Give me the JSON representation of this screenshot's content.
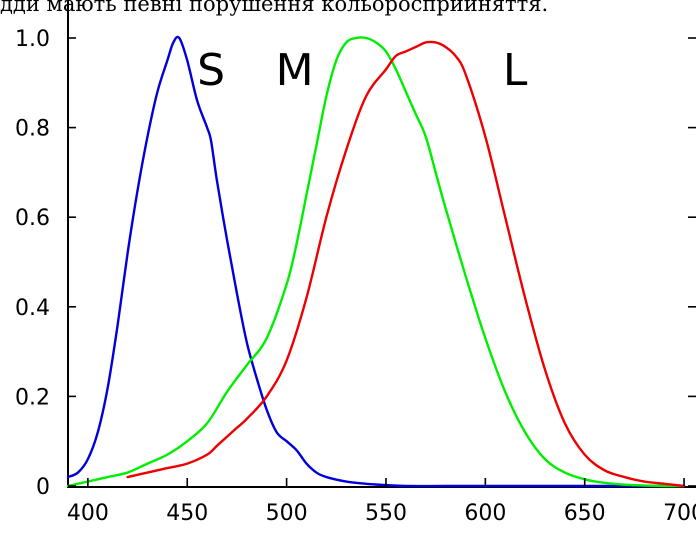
{
  "caption": "дди мають певні порушення кольоросприйняття.",
  "chart_data": {
    "type": "line",
    "xlim": [
      390,
      705
    ],
    "ylim": [
      0,
      1.0
    ],
    "x_ticks": [
      400,
      450,
      500,
      550,
      600,
      650,
      700
    ],
    "x_tick_labels": [
      "400",
      "450",
      "500",
      "550",
      "600",
      "650",
      "700"
    ],
    "y_ticks": [
      0,
      0.2,
      0.4,
      0.6,
      0.8,
      1.0
    ],
    "y_tick_labels": [
      "0",
      "0.2",
      "0.4",
      "0.6",
      "0.8",
      "1.0"
    ],
    "grid": false,
    "series": [
      {
        "name": "S",
        "color": "#0000dd",
        "x": [
          390,
          395,
          400,
          405,
          410,
          415,
          420,
          425,
          430,
          435,
          440,
          443,
          446,
          450,
          455,
          460,
          462,
          465,
          470,
          475,
          480,
          485,
          490,
          495,
          500,
          505,
          510,
          515,
          520,
          530,
          540,
          550,
          560,
          580,
          600,
          650,
          700
        ],
        "y": [
          0.02,
          0.03,
          0.06,
          0.12,
          0.22,
          0.36,
          0.52,
          0.66,
          0.78,
          0.88,
          0.95,
          0.99,
          1.0,
          0.95,
          0.86,
          0.8,
          0.77,
          0.68,
          0.55,
          0.43,
          0.32,
          0.24,
          0.17,
          0.12,
          0.1,
          0.08,
          0.05,
          0.03,
          0.02,
          0.01,
          0.005,
          0.002,
          0.0,
          0.0,
          0.0,
          0.0,
          0.0
        ]
      },
      {
        "name": "M",
        "color": "#00ee00",
        "x": [
          390,
          400,
          410,
          420,
          430,
          440,
          450,
          460,
          470,
          480,
          490,
          500,
          505,
          510,
          515,
          520,
          525,
          530,
          535,
          540,
          545,
          550,
          555,
          560,
          565,
          570,
          575,
          580,
          590,
          600,
          610,
          620,
          630,
          640,
          650,
          660,
          670,
          680,
          690,
          700
        ],
        "y": [
          0.0,
          0.01,
          0.02,
          0.03,
          0.05,
          0.07,
          0.1,
          0.14,
          0.21,
          0.27,
          0.33,
          0.45,
          0.54,
          0.65,
          0.76,
          0.87,
          0.95,
          0.99,
          1.0,
          1.0,
          0.99,
          0.97,
          0.93,
          0.88,
          0.83,
          0.78,
          0.7,
          0.62,
          0.47,
          0.33,
          0.21,
          0.12,
          0.06,
          0.03,
          0.015,
          0.007,
          0.003,
          0.001,
          0.0,
          0.0
        ]
      },
      {
        "name": "L",
        "color": "#ee0000",
        "x": [
          420,
          430,
          440,
          450,
          460,
          465,
          470,
          475,
          480,
          490,
          500,
          510,
          520,
          530,
          540,
          550,
          555,
          560,
          565,
          570,
          575,
          580,
          585,
          590,
          600,
          610,
          620,
          630,
          640,
          650,
          660,
          670,
          680,
          690,
          700
        ],
        "y": [
          0.02,
          0.03,
          0.04,
          0.05,
          0.07,
          0.09,
          0.11,
          0.13,
          0.15,
          0.2,
          0.28,
          0.42,
          0.6,
          0.75,
          0.87,
          0.93,
          0.96,
          0.97,
          0.98,
          0.99,
          0.99,
          0.98,
          0.96,
          0.92,
          0.78,
          0.6,
          0.42,
          0.26,
          0.14,
          0.07,
          0.035,
          0.02,
          0.01,
          0.005,
          0.0
        ]
      }
    ],
    "curve_labels": [
      {
        "text": "S",
        "x": 462,
        "y": 0.9
      },
      {
        "text": "M",
        "x": 504,
        "y": 0.9
      },
      {
        "text": "L",
        "x": 615,
        "y": 0.9
      }
    ]
  }
}
